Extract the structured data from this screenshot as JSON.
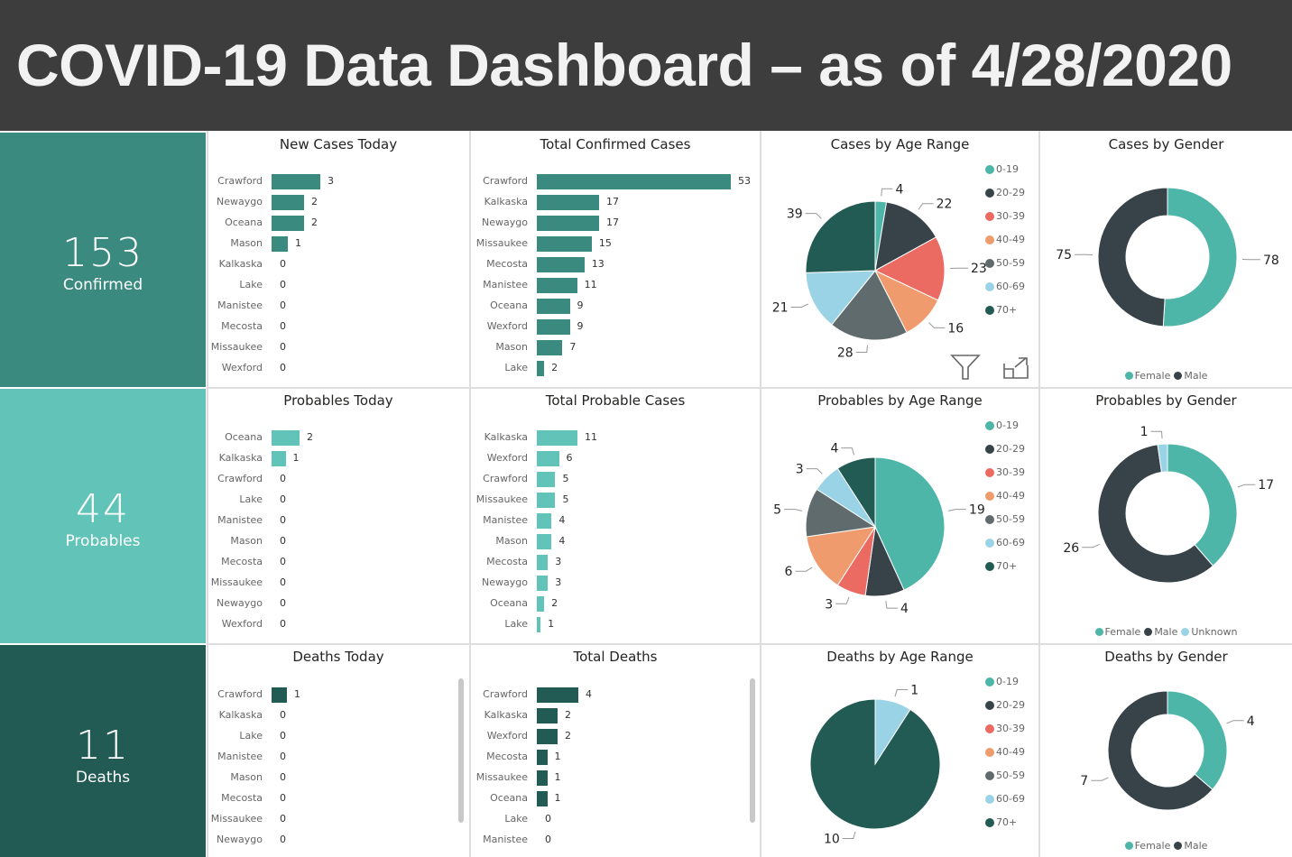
{
  "header": {
    "title": "COVID-19 Data Dashboard – as of 4/28/2020"
  },
  "kpis": [
    {
      "value": "153",
      "label": "Confirmed",
      "color": "#3a8a80"
    },
    {
      "value": "44",
      "label": "Probables",
      "color": "#62c4b9"
    },
    {
      "value": "11",
      "label": "Deaths",
      "color": "#225a54"
    }
  ],
  "icons": {
    "filter": "filter-icon",
    "focus": "focus-mode-icon"
  },
  "age_colors": {
    "0-19": "#4db6a8",
    "20-29": "#374349",
    "30-39": "#eb6a62",
    "40-49": "#f09b6e",
    "50-59": "#5f6b6d",
    "60-69": "#9ad3e6",
    "70+": "#225a54"
  },
  "gender_colors": {
    "Female": "#4db6a8",
    "Male": "#374349",
    "Unknown": "#9ad3e6"
  },
  "chart_data": [
    {
      "type": "bar",
      "orientation": "horizontal",
      "title": "New Cases Today",
      "color": "#3a8a80",
      "categories": [
        "Crawford",
        "Newaygo",
        "Oceana",
        "Mason",
        "Kalkaska",
        "Lake",
        "Manistee",
        "Mecosta",
        "Missaukee",
        "Wexford"
      ],
      "values": [
        3,
        2,
        2,
        1,
        0,
        0,
        0,
        0,
        0,
        0
      ]
    },
    {
      "type": "bar",
      "orientation": "horizontal",
      "title": "Total Confirmed Cases",
      "color": "#3a8a80",
      "categories": [
        "Crawford",
        "Kalkaska",
        "Newaygo",
        "Missaukee",
        "Mecosta",
        "Manistee",
        "Oceana",
        "Wexford",
        "Mason",
        "Lake"
      ],
      "values": [
        53,
        17,
        17,
        15,
        13,
        11,
        9,
        9,
        7,
        2
      ]
    },
    {
      "type": "pie",
      "title": "Cases by Age Range",
      "legend": "right",
      "categories": [
        "0-19",
        "20-29",
        "30-39",
        "40-49",
        "50-59",
        "60-69",
        "70+"
      ],
      "values": [
        4,
        22,
        23,
        16,
        28,
        21,
        39
      ]
    },
    {
      "type": "donut",
      "title": "Cases by Gender",
      "legend": "bottom",
      "categories": [
        "Female",
        "Male"
      ],
      "values": [
        78,
        75
      ]
    },
    {
      "type": "bar",
      "orientation": "horizontal",
      "title": "Probables Today",
      "color": "#62c4b9",
      "categories": [
        "Oceana",
        "Kalkaska",
        "Crawford",
        "Lake",
        "Manistee",
        "Mason",
        "Mecosta",
        "Missaukee",
        "Newaygo",
        "Wexford"
      ],
      "values": [
        2,
        1,
        0,
        0,
        0,
        0,
        0,
        0,
        0,
        0
      ]
    },
    {
      "type": "bar",
      "orientation": "horizontal",
      "title": "Total Probable Cases",
      "color": "#62c4b9",
      "categories": [
        "Kalkaska",
        "Wexford",
        "Crawford",
        "Missaukee",
        "Manistee",
        "Mason",
        "Mecosta",
        "Newaygo",
        "Oceana",
        "Lake"
      ],
      "values": [
        11,
        6,
        5,
        5,
        4,
        4,
        3,
        3,
        2,
        1
      ]
    },
    {
      "type": "pie",
      "title": "Probables by Age Range",
      "legend": "right",
      "categories": [
        "0-19",
        "20-29",
        "30-39",
        "40-49",
        "50-59",
        "60-69",
        "70+"
      ],
      "values": [
        19,
        4,
        3,
        6,
        5,
        3,
        4
      ]
    },
    {
      "type": "donut",
      "title": "Probables by Gender",
      "legend": "bottom",
      "categories": [
        "Female",
        "Male",
        "Unknown"
      ],
      "values": [
        17,
        26,
        1
      ]
    },
    {
      "type": "bar",
      "orientation": "horizontal",
      "title": "Deaths Today",
      "color": "#225a54",
      "categories": [
        "Crawford",
        "Kalkaska",
        "Lake",
        "Manistee",
        "Mason",
        "Mecosta",
        "Missaukee",
        "Newaygo"
      ],
      "values": [
        1,
        0,
        0,
        0,
        0,
        0,
        0,
        0
      ]
    },
    {
      "type": "bar",
      "orientation": "horizontal",
      "title": "Total Deaths",
      "color": "#225a54",
      "categories": [
        "Crawford",
        "Kalkaska",
        "Wexford",
        "Mecosta",
        "Missaukee",
        "Oceana",
        "Lake",
        "Manistee"
      ],
      "values": [
        4,
        2,
        2,
        1,
        1,
        1,
        0,
        0
      ]
    },
    {
      "type": "pie",
      "title": "Deaths by Age Range",
      "legend": "right",
      "categories": [
        "0-19",
        "20-29",
        "30-39",
        "40-49",
        "50-59",
        "60-69",
        "70+"
      ],
      "values": [
        0,
        0,
        0,
        0,
        0,
        1,
        10
      ]
    },
    {
      "type": "donut",
      "title": "Deaths by Gender",
      "legend": "bottom",
      "categories": [
        "Female",
        "Male"
      ],
      "values": [
        4,
        7
      ]
    }
  ]
}
